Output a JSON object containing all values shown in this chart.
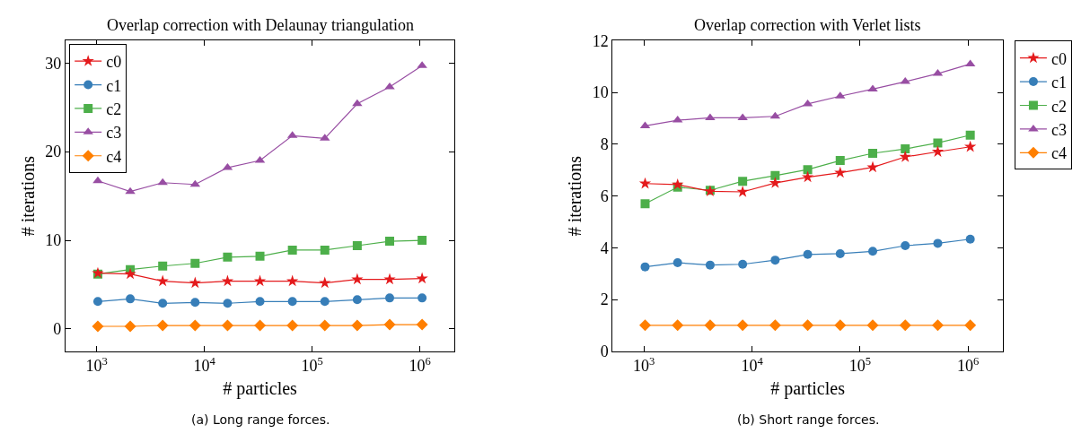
{
  "chart_data": [
    {
      "type": "line",
      "title": "Overlap correction with Delaunay triangulation",
      "xlabel": "# particles",
      "ylabel": "# iterations",
      "annotations": [
        "(a) Long range forces."
      ],
      "x": [
        1024,
        2048,
        4096,
        8192,
        16384,
        32768,
        65536,
        131072,
        262144,
        524288,
        1048576
      ],
      "log": "x",
      "xlim": [
        512,
        2097152
      ],
      "xticks": [
        {
          "value": 1000,
          "label": "10$^{3}$"
        },
        {
          "value": 10000,
          "label": "10$^{4}$"
        },
        {
          "value": 100000,
          "label": "10$^{5}$"
        },
        {
          "value": 1000000,
          "label": "10$^{6}$"
        }
      ],
      "ylim": [
        -2.5,
        32.5
      ],
      "yticks": [
        0,
        10,
        20,
        30
      ],
      "legend": "top left",
      "line_style": "solid",
      "series": [
        {
          "name": "c0",
          "color": "#e41a1c",
          "marker": "star",
          "values": [
            6.3,
            6.2,
            5.4,
            5.2,
            5.4,
            5.4,
            5.4,
            5.2,
            5.6,
            5.6,
            5.7
          ]
        },
        {
          "name": "c1",
          "color": "#377eb8",
          "marker": "circle",
          "values": [
            3.1,
            3.4,
            2.9,
            3.0,
            2.9,
            3.1,
            3.1,
            3.1,
            3.3,
            3.5,
            3.5
          ]
        },
        {
          "name": "c2",
          "color": "#4daf4a",
          "marker": "square",
          "values": [
            6.2,
            6.7,
            7.1,
            7.4,
            8.1,
            8.2,
            8.9,
            8.9,
            9.4,
            9.9,
            10.0
          ]
        },
        {
          "name": "c3",
          "color": "#984ea3",
          "marker": "triangle",
          "values": [
            16.7,
            15.5,
            16.5,
            16.3,
            18.2,
            19.0,
            21.8,
            21.5,
            25.4,
            27.3,
            29.7
          ]
        },
        {
          "name": "c4",
          "color": "#ff7f00",
          "marker": "diamond",
          "values": [
            0.3,
            0.3,
            0.4,
            0.4,
            0.4,
            0.4,
            0.4,
            0.4,
            0.4,
            0.5,
            0.5
          ]
        }
      ]
    },
    {
      "type": "line",
      "title": "Overlap correction with Verlet lists",
      "xlabel": "# particles",
      "ylabel": "# iterations",
      "annotations": [
        "(b) Short range forces."
      ],
      "x": [
        1024,
        2048,
        4096,
        8192,
        16384,
        32768,
        65536,
        131072,
        262144,
        524288,
        1048576
      ],
      "log": "x",
      "xlim": [
        512,
        2097152
      ],
      "xticks": [
        {
          "value": 1000,
          "label": "10$^{3}$"
        },
        {
          "value": 10000,
          "label": "10$^{4}$"
        },
        {
          "value": 100000,
          "label": "10$^{5}$"
        },
        {
          "value": 1000000,
          "label": "10$^{6}$"
        }
      ],
      "ylim": [
        0,
        12
      ],
      "yticks": [
        0,
        2,
        4,
        6,
        8,
        10,
        12
      ],
      "legend": "right",
      "line_style": "solid",
      "series": [
        {
          "name": "c0",
          "color": "#e41a1c",
          "marker": "star",
          "values": [
            6.48,
            6.44,
            6.18,
            6.16,
            6.5,
            6.73,
            6.9,
            7.11,
            7.51,
            7.71,
            7.9
          ]
        },
        {
          "name": "c1",
          "color": "#377eb8",
          "marker": "circle",
          "values": [
            3.26,
            3.42,
            3.33,
            3.36,
            3.52,
            3.74,
            3.77,
            3.86,
            4.08,
            4.17,
            4.33
          ]
        },
        {
          "name": "c2",
          "color": "#4daf4a",
          "marker": "square",
          "values": [
            5.7,
            6.34,
            6.22,
            6.57,
            6.79,
            7.02,
            7.37,
            7.65,
            7.82,
            8.05,
            8.35
          ]
        },
        {
          "name": "c3",
          "color": "#984ea3",
          "marker": "triangle",
          "values": [
            8.71,
            8.93,
            9.02,
            9.02,
            9.08,
            9.56,
            9.86,
            10.13,
            10.42,
            10.73,
            11.1
          ]
        },
        {
          "name": "c4",
          "color": "#ff7f00",
          "marker": "diamond",
          "values": [
            1.0,
            1.0,
            1.0,
            1.0,
            1.0,
            1.0,
            1.0,
            1.0,
            1.0,
            1.0,
            1.0
          ]
        }
      ]
    }
  ]
}
